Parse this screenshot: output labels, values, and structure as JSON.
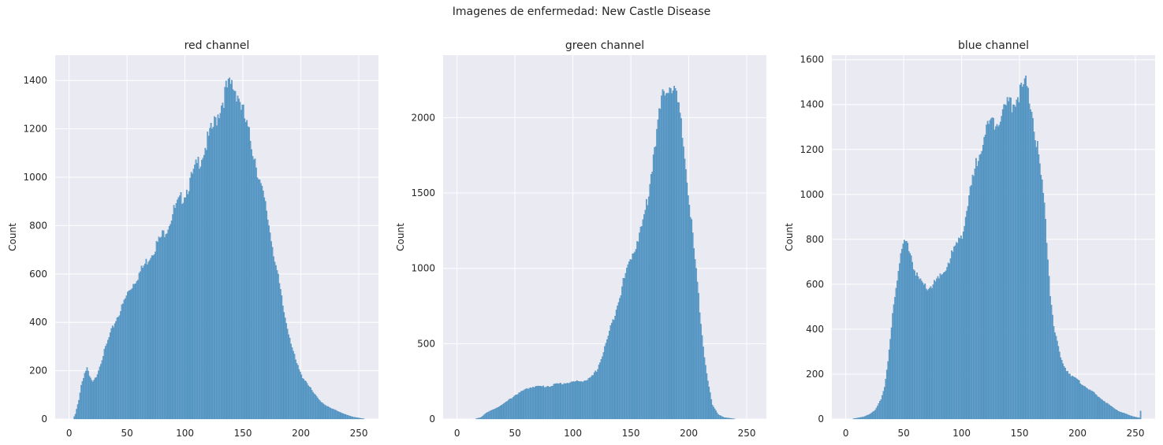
{
  "figure": {
    "suptitle": "Imagenes de enfermedad: New Castle Disease"
  },
  "style": {
    "background": "#eaeaf2",
    "grid": "#ffffff",
    "bar_fill": "#5b9bc7",
    "bar_edge": "#3b7fb1",
    "text": "#262626"
  },
  "chart_data": [
    {
      "type": "bar",
      "title": "red channel",
      "xlabel": "",
      "ylabel": "Count",
      "xlim": [
        -12,
        267
      ],
      "ylim": [
        0,
        1505
      ],
      "xticks": [
        0,
        50,
        100,
        150,
        200,
        250
      ],
      "yticks": [
        0,
        200,
        400,
        600,
        800,
        1000,
        1200,
        1400
      ],
      "grid": true,
      "bins": "0-255, width 1",
      "profile": [
        [
          0,
          0
        ],
        [
          3,
          0
        ],
        [
          5,
          20
        ],
        [
          8,
          80
        ],
        [
          10,
          140
        ],
        [
          13,
          190
        ],
        [
          15,
          210
        ],
        [
          17,
          175
        ],
        [
          20,
          150
        ],
        [
          23,
          175
        ],
        [
          26,
          220
        ],
        [
          30,
          280
        ],
        [
          35,
          350
        ],
        [
          40,
          410
        ],
        [
          45,
          460
        ],
        [
          50,
          520
        ],
        [
          55,
          560
        ],
        [
          60,
          600
        ],
        [
          65,
          640
        ],
        [
          70,
          680
        ],
        [
          75,
          720
        ],
        [
          80,
          760
        ],
        [
          85,
          800
        ],
        [
          90,
          860
        ],
        [
          95,
          900
        ],
        [
          100,
          940
        ],
        [
          105,
          990
        ],
        [
          110,
          1050
        ],
        [
          115,
          1100
        ],
        [
          120,
          1160
        ],
        [
          125,
          1220
        ],
        [
          130,
          1290
        ],
        [
          135,
          1360
        ],
        [
          140,
          1380
        ],
        [
          145,
          1350
        ],
        [
          150,
          1260
        ],
        [
          155,
          1170
        ],
        [
          160,
          1080
        ],
        [
          165,
          960
        ],
        [
          170,
          860
        ],
        [
          175,
          720
        ],
        [
          180,
          580
        ],
        [
          185,
          440
        ],
        [
          190,
          340
        ],
        [
          195,
          240
        ],
        [
          200,
          180
        ],
        [
          205,
          150
        ],
        [
          210,
          110
        ],
        [
          215,
          80
        ],
        [
          220,
          60
        ],
        [
          225,
          45
        ],
        [
          230,
          35
        ],
        [
          235,
          25
        ],
        [
          240,
          15
        ],
        [
          245,
          8
        ],
        [
          250,
          4
        ],
        [
          255,
          0
        ]
      ]
    },
    {
      "type": "bar",
      "title": "green channel",
      "xlabel": "",
      "ylabel": "Count",
      "xlim": [
        -12,
        267
      ],
      "ylim": [
        0,
        2415
      ],
      "xticks": [
        0,
        50,
        100,
        150,
        200,
        250
      ],
      "yticks": [
        0,
        500,
        1000,
        1500,
        2000
      ],
      "grid": true,
      "bins": "0-255, width 1",
      "profile": [
        [
          0,
          0
        ],
        [
          15,
          0
        ],
        [
          20,
          10
        ],
        [
          25,
          40
        ],
        [
          30,
          60
        ],
        [
          35,
          80
        ],
        [
          40,
          100
        ],
        [
          45,
          130
        ],
        [
          50,
          160
        ],
        [
          55,
          180
        ],
        [
          60,
          200
        ],
        [
          65,
          215
        ],
        [
          70,
          215
        ],
        [
          75,
          215
        ],
        [
          80,
          220
        ],
        [
          85,
          230
        ],
        [
          90,
          235
        ],
        [
          95,
          240
        ],
        [
          100,
          245
        ],
        [
          105,
          250
        ],
        [
          110,
          255
        ],
        [
          115,
          270
        ],
        [
          120,
          320
        ],
        [
          125,
          420
        ],
        [
          130,
          550
        ],
        [
          135,
          680
        ],
        [
          140,
          820
        ],
        [
          145,
          960
        ],
        [
          150,
          1080
        ],
        [
          155,
          1180
        ],
        [
          160,
          1300
        ],
        [
          165,
          1500
        ],
        [
          170,
          1820
        ],
        [
          175,
          2050
        ],
        [
          180,
          2220
        ],
        [
          185,
          2220
        ],
        [
          190,
          2100
        ],
        [
          195,
          1820
        ],
        [
          200,
          1440
        ],
        [
          205,
          1050
        ],
        [
          210,
          650
        ],
        [
          213,
          420
        ],
        [
          216,
          250
        ],
        [
          220,
          90
        ],
        [
          225,
          30
        ],
        [
          230,
          10
        ],
        [
          235,
          5
        ],
        [
          240,
          0
        ],
        [
          255,
          0
        ]
      ]
    },
    {
      "type": "bar",
      "title": "blue channel",
      "xlabel": "",
      "ylabel": "Count",
      "xlim": [
        -12,
        267
      ],
      "ylim": [
        0,
        1620
      ],
      "xticks": [
        0,
        50,
        100,
        150,
        200,
        250
      ],
      "yticks": [
        0,
        200,
        400,
        600,
        800,
        1000,
        1200,
        1400,
        1600
      ],
      "grid": true,
      "bins": "0-255, width 1",
      "profile": [
        [
          0,
          0
        ],
        [
          5,
          0
        ],
        [
          10,
          5
        ],
        [
          15,
          10
        ],
        [
          20,
          20
        ],
        [
          25,
          40
        ],
        [
          30,
          90
        ],
        [
          33,
          140
        ],
        [
          36,
          250
        ],
        [
          38,
          350
        ],
        [
          40,
          480
        ],
        [
          42,
          560
        ],
        [
          45,
          660
        ],
        [
          48,
          740
        ],
        [
          50,
          780
        ],
        [
          53,
          780
        ],
        [
          56,
          730
        ],
        [
          60,
          640
        ],
        [
          65,
          600
        ],
        [
          70,
          580
        ],
        [
          75,
          600
        ],
        [
          80,
          620
        ],
        [
          85,
          660
        ],
        [
          90,
          720
        ],
        [
          95,
          770
        ],
        [
          100,
          830
        ],
        [
          105,
          950
        ],
        [
          110,
          1080
        ],
        [
          115,
          1200
        ],
        [
          120,
          1280
        ],
        [
          125,
          1310
        ],
        [
          130,
          1340
        ],
        [
          135,
          1370
        ],
        [
          140,
          1400
        ],
        [
          145,
          1420
        ],
        [
          150,
          1460
        ],
        [
          155,
          1480
        ],
        [
          160,
          1380
        ],
        [
          165,
          1200
        ],
        [
          170,
          1000
        ],
        [
          173,
          800
        ],
        [
          176,
          560
        ],
        [
          180,
          380
        ],
        [
          185,
          270
        ],
        [
          190,
          220
        ],
        [
          195,
          190
        ],
        [
          200,
          170
        ],
        [
          205,
          150
        ],
        [
          210,
          130
        ],
        [
          215,
          110
        ],
        [
          220,
          90
        ],
        [
          225,
          70
        ],
        [
          230,
          50
        ],
        [
          235,
          35
        ],
        [
          240,
          25
        ],
        [
          245,
          15
        ],
        [
          250,
          8
        ],
        [
          253,
          5
        ],
        [
          254,
          35
        ],
        [
          255,
          0
        ]
      ]
    }
  ]
}
